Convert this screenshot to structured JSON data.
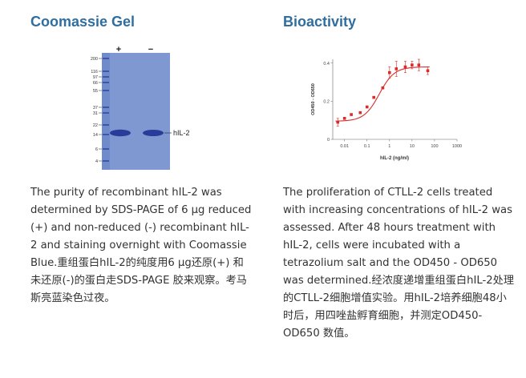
{
  "gel_section": {
    "title": "Coomassie Gel",
    "description": "The purity of recombinant hIL-2 was determined by SDS-PAGE of 6 µg reduced (+) and non-reduced (-) recombinant hIL-2 and staining overnight with Coomassie Blue.重组蛋白hIL-2的纯度用6 µg还原(+) 和未还原(-)的蛋白走SDS-PAGE 胶来观察。考马斯亮蓝染色过夜。",
    "lane_plus": "+",
    "lane_minus": "−",
    "band_label": "hIL-2",
    "markers": [
      "200",
      "116",
      "97",
      "66",
      "55",
      "37",
      "31",
      "22",
      "14",
      "6",
      "4"
    ],
    "colors": {
      "gel": "#7f98d2",
      "band": "#2a3c9a"
    }
  },
  "bioactivity_section": {
    "title": "Bioactivity",
    "description": "The proliferation of CTLL-2 cells treated with increasing concentrations of hIL-2 was assessed. After 48 hours treatment with hIL-2, cells were incubated with a tetrazolium salt and the OD450 - OD650 was determined.经浓度递增重组蛋白hIL-2处理的CTLL-2细胞增值实验。用hIL-2培养细胞48小时后，用四唑盐孵育细胞，并测定OD450-OD650 数值。"
  },
  "chart_data": {
    "type": "scatter",
    "xscale": "log",
    "xlim": [
      0.003,
      1000
    ],
    "ylim": [
      0,
      0.42
    ],
    "xticks": [
      "0.01",
      "0.1",
      "1",
      "10",
      "100",
      "1000"
    ],
    "xtick_values": [
      0.01,
      0.1,
      1,
      10,
      100,
      1000
    ],
    "yticks": [
      "0.4",
      "0.2",
      "0"
    ],
    "ytick_values": [
      0.4,
      0.2,
      0
    ],
    "xlabel": "hIL-2 (ng/ml)",
    "ylabel": "OD450 - OD650",
    "grid": false,
    "series": [
      {
        "x": [
          0.005,
          0.01,
          0.02,
          0.05,
          0.1,
          0.2,
          0.5,
          1,
          2,
          5,
          10,
          20,
          50
        ],
        "y": [
          0.09,
          0.11,
          0.13,
          0.14,
          0.17,
          0.22,
          0.27,
          0.35,
          0.37,
          0.38,
          0.39,
          0.39,
          0.36
        ],
        "err": [
          0.02,
          0.0,
          0.0,
          0.0,
          0.0,
          0.0,
          0.0,
          0.03,
          0.04,
          0.03,
          0.02,
          0.03,
          0.02
        ],
        "color": "#d92b2b"
      }
    ],
    "fit": {
      "bottom": 0.095,
      "top": 0.38,
      "ec50": 0.35,
      "hill": 1.3,
      "color": "#d92b2b"
    }
  }
}
